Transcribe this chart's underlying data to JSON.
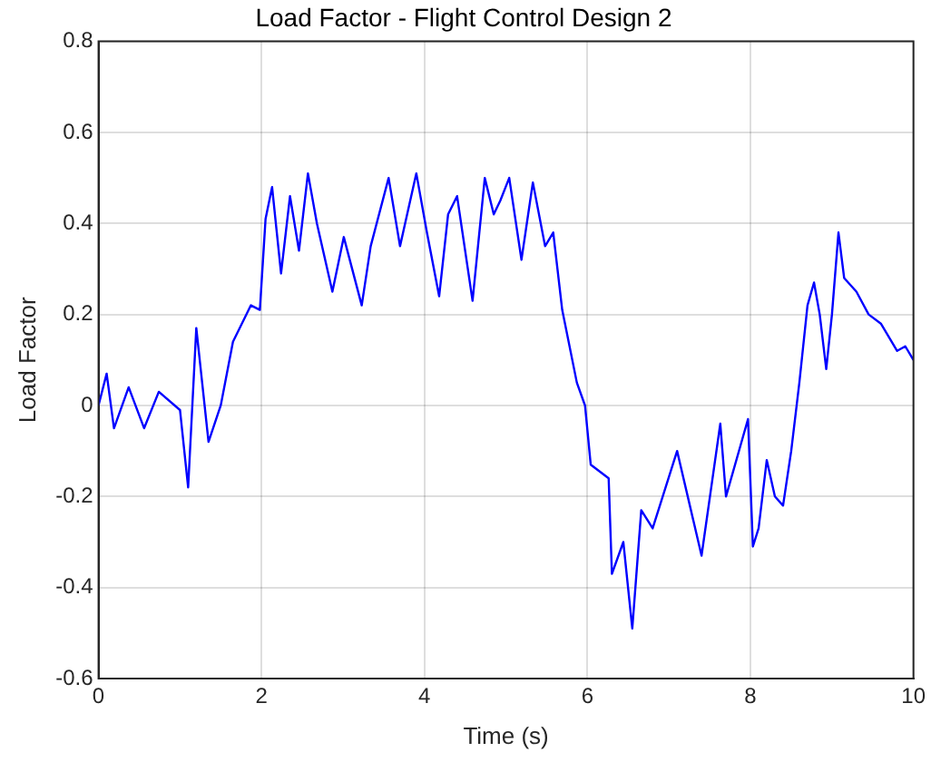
{
  "chart_data": {
    "type": "line",
    "title": "Load Factor - Flight Control Design 2",
    "xlabel": "Time (s)",
    "ylabel": "Load Factor",
    "xlim": [
      0,
      10
    ],
    "xticks": [
      0,
      2,
      4,
      6,
      8,
      10
    ],
    "ylim": [
      -0.6,
      0.8
    ],
    "yticks": [
      -0.6,
      -0.4,
      -0.2,
      0,
      0.2,
      0.4,
      0.6,
      0.8
    ],
    "grid": true,
    "marker": "none",
    "line_style": "solid",
    "series": [
      {
        "color": "#0000ff",
        "x": [
          0,
          0.1,
          0.19,
          0.37,
          0.56,
          0.74,
          1.0,
          1.1,
          1.2,
          1.35,
          1.5,
          1.65,
          1.87,
          1.98,
          2.05,
          2.13,
          2.24,
          2.35,
          2.46,
          2.57,
          2.68,
          2.87,
          3.01,
          3.23,
          3.34,
          3.56,
          3.7,
          3.9,
          4.03,
          4.18,
          4.29,
          4.4,
          4.59,
          4.74,
          4.85,
          4.93,
          5.04,
          5.19,
          5.33,
          5.48,
          5.58,
          5.69,
          5.87,
          5.97,
          6.04,
          6.26,
          6.3,
          6.44,
          6.55,
          6.66,
          6.8,
          7.1,
          7.4,
          7.63,
          7.7,
          7.97,
          8.03,
          8.1,
          8.2,
          8.3,
          8.4,
          8.5,
          8.6,
          8.7,
          8.78,
          8.85,
          8.93,
          9.0,
          9.08,
          9.15,
          9.3,
          9.45,
          9.6,
          9.8,
          9.9,
          10
        ],
        "values": [
          0,
          0.07,
          -0.05,
          0.04,
          -0.05,
          0.03,
          -0.01,
          -0.18,
          0.17,
          -0.08,
          0,
          0.14,
          0.22,
          0.21,
          0.41,
          0.48,
          0.29,
          0.46,
          0.34,
          0.51,
          0.4,
          0.25,
          0.37,
          0.22,
          0.35,
          0.5,
          0.35,
          0.51,
          0.38,
          0.24,
          0.42,
          0.46,
          0.23,
          0.5,
          0.42,
          0.45,
          0.5,
          0.32,
          0.49,
          0.35,
          0.38,
          0.21,
          0.05,
          0,
          -0.13,
          -0.16,
          -0.37,
          -0.3,
          -0.49,
          -0.23,
          -0.27,
          -0.1,
          -0.33,
          -0.04,
          -0.2,
          -0.03,
          -0.31,
          -0.27,
          -0.12,
          -0.2,
          -0.22,
          -0.1,
          0.05,
          0.22,
          0.27,
          0.2,
          0.08,
          0.2,
          0.38,
          0.28,
          0.25,
          0.2,
          0.18,
          0.12,
          0.13,
          0.1
        ]
      }
    ]
  }
}
